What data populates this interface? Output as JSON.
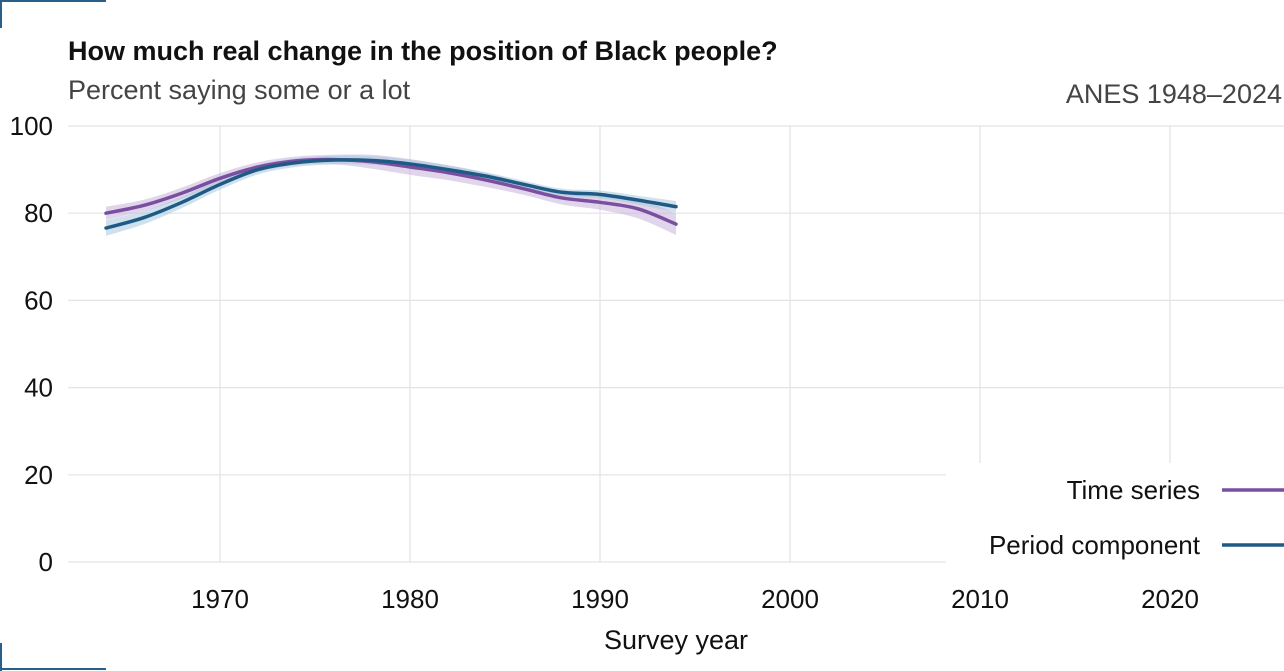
{
  "chart_data": {
    "type": "line",
    "title": "How much real change in the position of Black people?",
    "subtitle": "Percent saying some or a lot",
    "source": "ANES 1948–2024",
    "xlabel": "Survey year",
    "ylabel": "",
    "xlim": [
      1962,
      2026
    ],
    "ylim": [
      0,
      100
    ],
    "x_ticks": [
      "1970",
      "1980",
      "1990",
      "2000",
      "2010",
      "2020"
    ],
    "y_ticks": [
      "0",
      "20",
      "40",
      "60",
      "80",
      "100"
    ],
    "grid": true,
    "legend_position": "bottom-right",
    "x": [
      1964,
      1966,
      1968,
      1970,
      1972,
      1974,
      1976,
      1978,
      1980,
      1982,
      1984,
      1986,
      1988,
      1990,
      1992,
      1994
    ],
    "series": [
      {
        "name": "Time series",
        "color": "#7b4fa0",
        "band_color": "#c9b3dc",
        "values": [
          80.0,
          81.8,
          84.6,
          88.0,
          90.6,
          92.0,
          92.3,
          91.8,
          90.6,
          89.3,
          87.6,
          85.6,
          83.5,
          82.5,
          81.0,
          77.5
        ],
        "lower": [
          78.5,
          80.5,
          83.3,
          86.8,
          89.5,
          91.0,
          91.2,
          90.2,
          88.8,
          87.6,
          86.0,
          84.2,
          82.0,
          80.8,
          78.8,
          75.0
        ],
        "upper": [
          81.5,
          83.1,
          85.9,
          89.2,
          91.7,
          93.0,
          93.4,
          93.4,
          92.4,
          91.0,
          89.2,
          87.0,
          85.0,
          84.2,
          83.2,
          80.0
        ]
      },
      {
        "name": "Period component",
        "color": "#1f5a85",
        "band_color": "#a8c8dc",
        "values": [
          76.6,
          79.0,
          82.5,
          86.6,
          90.0,
          91.6,
          92.2,
          92.1,
          91.3,
          90.0,
          88.5,
          86.6,
          84.8,
          84.3,
          83.0,
          81.5
        ],
        "lower": [
          74.8,
          77.5,
          81.2,
          85.4,
          88.9,
          90.6,
          91.2,
          91.1,
          90.3,
          89.0,
          87.6,
          85.8,
          84.0,
          83.4,
          82.0,
          80.2
        ],
        "upper": [
          78.4,
          80.5,
          83.8,
          87.8,
          91.1,
          92.6,
          93.2,
          93.1,
          92.3,
          91.0,
          89.4,
          87.4,
          85.6,
          85.2,
          84.0,
          82.8
        ]
      }
    ]
  }
}
